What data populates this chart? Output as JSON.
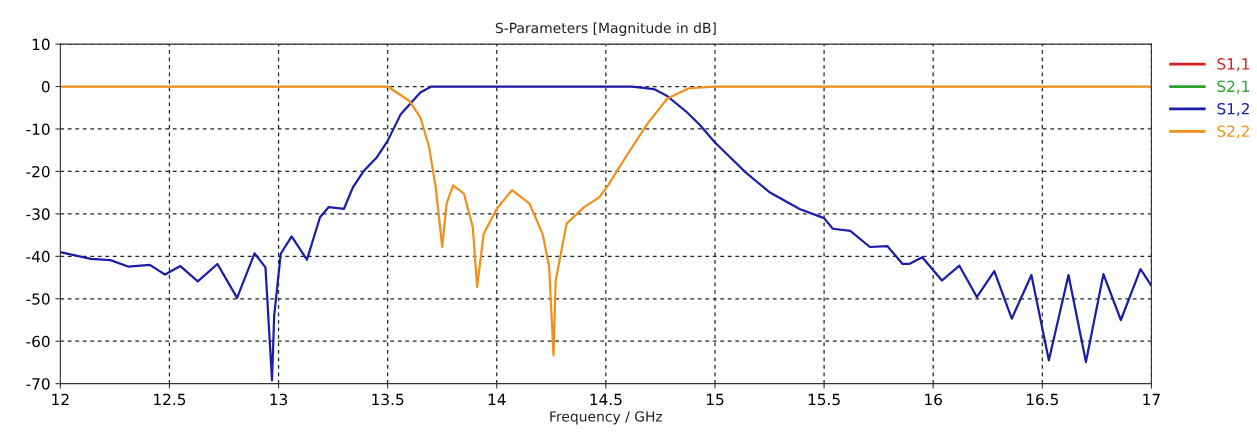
{
  "chart_data": {
    "type": "line",
    "title": "S-Parameters [Magnitude in dB]",
    "xlabel": "Frequency / GHz",
    "xlim": [
      12,
      17
    ],
    "xticks": [
      12,
      12.5,
      13,
      13.5,
      14,
      14.5,
      15,
      15.5,
      16,
      16.5,
      17
    ],
    "ylim": [
      -70,
      10
    ],
    "yticks": [
      -70,
      -60,
      -50,
      -40,
      -30,
      -20,
      -10,
      0,
      10
    ],
    "grid": true,
    "legend": "top right",
    "marker": "none",
    "line_style": "solid",
    "series": [
      {
        "name": "S1,1",
        "color": "#d62020"
      },
      {
        "name": "S2,1",
        "color": "#2ca02c"
      },
      {
        "name": "S1,2",
        "color": "#1c1caa",
        "x": [
          12.0,
          12.14,
          12.23,
          12.31,
          12.41,
          12.48,
          12.55,
          12.63,
          12.72,
          12.81,
          12.89,
          12.94,
          12.97,
          12.98,
          13.01,
          13.06,
          13.13,
          13.19,
          13.23,
          13.3,
          13.34,
          13.39,
          13.45,
          13.5,
          13.56,
          13.65,
          13.7,
          14.0,
          14.3,
          14.62,
          14.72,
          14.78,
          14.87,
          14.93,
          15.0,
          15.14,
          15.25,
          15.39,
          15.5,
          15.54,
          15.62,
          15.71,
          15.79,
          15.86,
          15.89,
          15.95,
          16.04,
          16.12,
          16.2,
          16.28,
          16.36,
          16.45,
          16.53,
          16.62,
          16.7,
          16.78,
          16.86,
          16.95,
          17.0
        ],
        "values": [
          -39.0,
          -40.6,
          -40.9,
          -42.4,
          -42,
          -44.3,
          -42.3,
          -45.9,
          -41.8,
          -49.8,
          -39.3,
          -42.6,
          -69.2,
          -54,
          -39.4,
          -35.3,
          -40.8,
          -30.8,
          -28.4,
          -28.8,
          -23.8,
          -19.9,
          -16.7,
          -12.8,
          -6.5,
          -1.4,
          0,
          0,
          0,
          0,
          -0.6,
          -2.2,
          -6,
          -9,
          -13.2,
          -20.2,
          -24.9,
          -28.9,
          -31,
          -33.5,
          -34,
          -37.8,
          -37.6,
          -41.8,
          -41.8,
          -40.2,
          -45.7,
          -42.2,
          -49.6,
          -43.5,
          -54.7,
          -44.4,
          -64.5,
          -44.4,
          -64.9,
          -44.2,
          -55,
          -43,
          -46.9
        ]
      },
      {
        "name": "S2,2",
        "color": "#f0901a",
        "x": [
          12.0,
          13.0,
          13.5,
          13.6,
          13.65,
          13.69,
          13.72,
          13.75,
          13.77,
          13.8,
          13.85,
          13.89,
          13.91,
          13.94,
          14.0,
          14.07,
          14.15,
          14.21,
          14.24,
          14.26,
          14.27,
          14.32,
          14.4,
          14.47,
          14.51,
          14.6,
          14.69,
          14.78,
          14.88,
          15.0,
          16.0,
          17.0
        ],
        "values": [
          0,
          0,
          0,
          -3.4,
          -7.3,
          -14.3,
          -23.7,
          -37.8,
          -27.6,
          -23.3,
          -25.3,
          -33.1,
          -47.2,
          -34.7,
          -28.8,
          -24.4,
          -27.6,
          -34.7,
          -42.5,
          -63.3,
          -45.7,
          -32.3,
          -28.4,
          -26.1,
          -23.3,
          -15.9,
          -8.8,
          -2.9,
          -0.4,
          0,
          0,
          0
        ]
      }
    ]
  }
}
